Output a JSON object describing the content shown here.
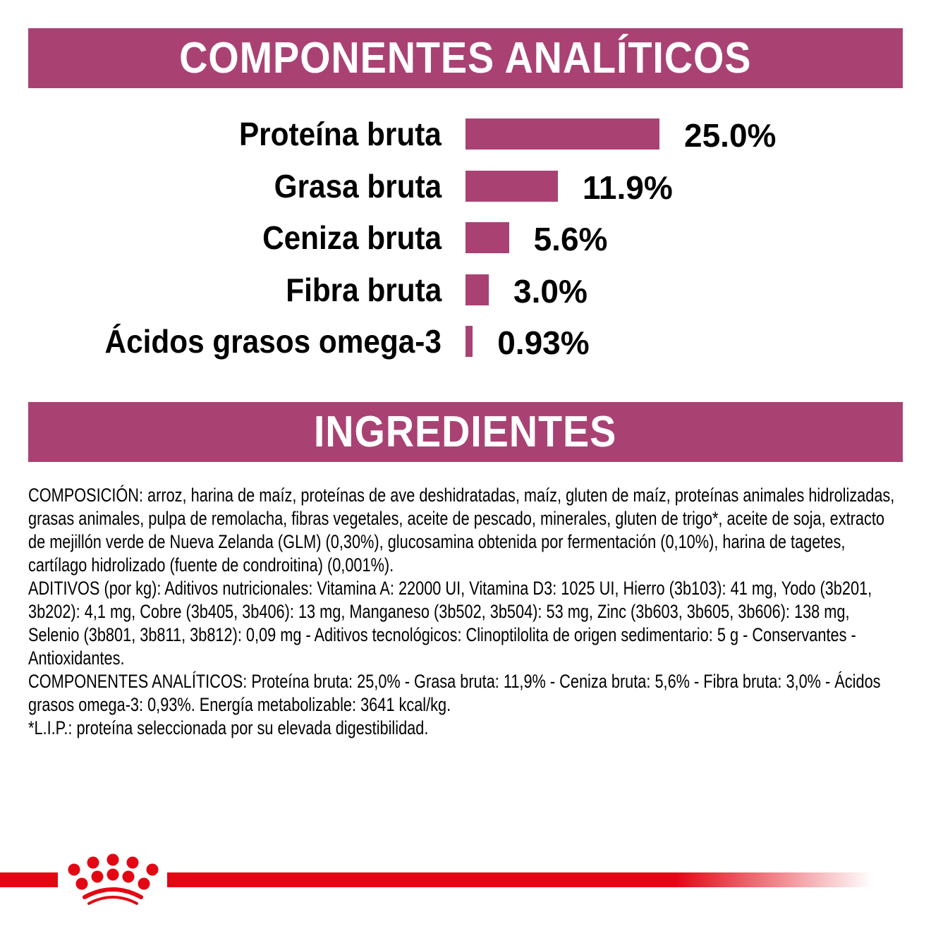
{
  "sections": {
    "analytics_title": "COMPONENTES ANALÍTICOS",
    "ingredients_title": "INGREDIENTES"
  },
  "chart_data": {
    "type": "bar",
    "orientation": "horizontal",
    "categories": [
      "Proteína bruta",
      "Grasa bruta",
      "Ceniza bruta",
      "Fibra bruta",
      "Ácidos grasos omega-3"
    ],
    "values": [
      25.0,
      11.9,
      5.6,
      3.0,
      0.93
    ],
    "data_labels": [
      "25.0%",
      "11.9%",
      "5.6%",
      "3.0%",
      "0.93%"
    ],
    "unit": "%",
    "grid": false,
    "bar_color": "#A94273"
  },
  "ingredients": {
    "paragraphs": [
      "COMPOSICIÓN: arroz, harina de maíz, proteínas de ave deshidratadas, maíz, gluten de maíz, proteínas animales hidrolizadas, grasas animales, pulpa de remolacha, fibras vegetales, aceite de pescado, minerales, gluten de trigo*, aceite de soja, extracto de mejillón verde de Nueva Zelanda (GLM) (0,30%), glucosamina obtenida por fermentación (0,10%), harina de tagetes, cartílago hidrolizado (fuente de condroitina) (0,001%).",
      "ADITIVOS (por kg): Aditivos nutricionales: Vitamina A: 22000 UI, Vitamina D3: 1025 UI, Hierro (3b103): 41 mg, Yodo (3b201, 3b202): 4,1 mg, Cobre (3b405, 3b406): 13 mg, Manganeso (3b502, 3b504): 53 mg, Zinc (3b603, 3b605, 3b606): 138 mg, Selenio (3b801, 3b811, 3b812): 0,09 mg - Aditivos tecnológicos: Clinoptilolita de origen sedimentario: 5 g - Conservantes - Antioxidantes.",
      "COMPONENTES ANALÍTICOS: Proteína bruta: 25,0% - Grasa bruta: 11,9% - Ceniza bruta: 5,6% - Fibra bruta: 3,0% - Ácidos grasos omega-3: 0,93%. Energía metabolizable: 3641 kcal/kg.",
      "*L.I.P.: proteína seleccionada por su elevada digestibilidad."
    ]
  },
  "brand": {
    "logo": "crown-logo",
    "color": "#E30613"
  },
  "colors": {
    "accent": "#A94273"
  }
}
